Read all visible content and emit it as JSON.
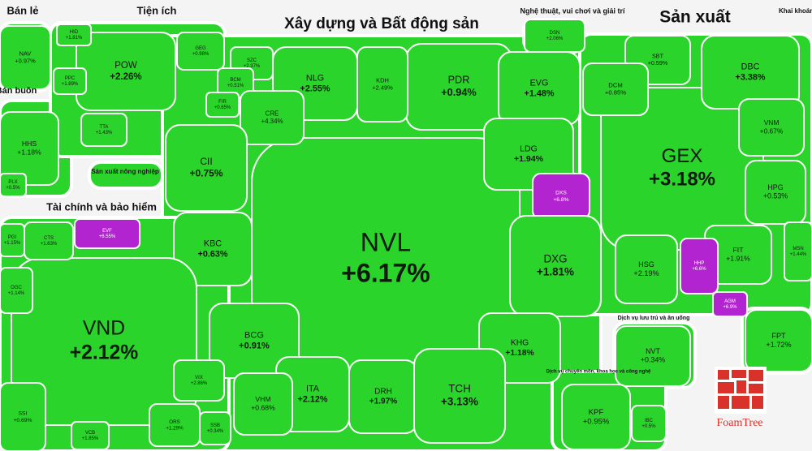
{
  "chart_data": {
    "type": "treemap",
    "logo": "FoamTree",
    "groups": [
      {
        "name": "Bán lẻ",
        "items": [
          {
            "name": "NAV",
            "value": 0.97,
            "value_label": "+0.97%",
            "color": "#2bd42b"
          }
        ]
      },
      {
        "name": "Bán buôn",
        "items": [
          {
            "name": "HHS",
            "value": 1.18,
            "value_label": "+1.18%",
            "color": "#2bd42b"
          },
          {
            "name": "PLX",
            "value": 0.5,
            "value_label": "+0.5%",
            "color": "#2bd42b"
          }
        ]
      },
      {
        "name": "Tiện ích",
        "items": [
          {
            "name": "POW",
            "value": 2.26,
            "value_label": "+2.26%",
            "color": "#2bd42b"
          },
          {
            "name": "GEG",
            "value": 0.98,
            "value_label": "+0.98%",
            "color": "#2bd42b"
          },
          {
            "name": "HID",
            "value": 1.81,
            "value_label": "+1.81%",
            "color": "#2bd42b"
          },
          {
            "name": "PPC",
            "value": 1.89,
            "value_label": "+1.89%",
            "color": "#2bd42b"
          },
          {
            "name": "TTA",
            "value": 1.43,
            "value_label": "+1.43%",
            "color": "#2bd42b"
          }
        ]
      },
      {
        "name": "Sản xuất nông nghiệp",
        "items": []
      },
      {
        "name": "Xây dựng và Bất động sản",
        "items": [
          {
            "name": "NVL",
            "value": 6.17,
            "value_label": "+6.17%",
            "color": "#2bd42b"
          },
          {
            "name": "PDR",
            "value": 0.94,
            "value_label": "+0.94%",
            "color": "#2bd42b"
          },
          {
            "name": "NLG",
            "value": 2.55,
            "value_label": "+2.55%",
            "color": "#2bd42b"
          },
          {
            "name": "KDH",
            "value": 2.49,
            "value_label": "+2.49%",
            "color": "#2bd42b"
          },
          {
            "name": "SZC",
            "value": 2.37,
            "value_label": "+2.37%",
            "color": "#2bd42b"
          },
          {
            "name": "BCM",
            "value": 0.51,
            "value_label": "+0.51%",
            "color": "#2bd42b"
          },
          {
            "name": "FIR",
            "value": 0.65,
            "value_label": "+0.65%",
            "color": "#2bd42b"
          },
          {
            "name": "CRE",
            "value": 4.34,
            "value_label": "+4.34%",
            "color": "#2bd42b"
          },
          {
            "name": "CII",
            "value": 0.75,
            "value_label": "+0.75%",
            "color": "#2bd42b"
          },
          {
            "name": "EVG",
            "value": 1.48,
            "value_label": "+1.48%",
            "color": "#2bd42b"
          },
          {
            "name": "LDG",
            "value": 1.94,
            "value_label": "+1.94%",
            "color": "#2bd42b"
          },
          {
            "name": "DXS",
            "value": 6.8,
            "value_label": "+6.8%",
            "color": "#b224cf"
          },
          {
            "name": "KBC",
            "value": 0.63,
            "value_label": "+0.63%",
            "color": "#2bd42b"
          },
          {
            "name": "DXG",
            "value": 1.81,
            "value_label": "+1.81%",
            "color": "#2bd42b"
          },
          {
            "name": "BCG",
            "value": 0.91,
            "value_label": "+0.91%",
            "color": "#2bd42b"
          },
          {
            "name": "KHG",
            "value": 1.18,
            "value_label": "+1.18%",
            "color": "#2bd42b"
          },
          {
            "name": "ITA",
            "value": 2.12,
            "value_label": "+2.12%",
            "color": "#2bd42b"
          },
          {
            "name": "DRH",
            "value": 1.97,
            "value_label": "+1.97%",
            "color": "#2bd42b"
          },
          {
            "name": "TCH",
            "value": 3.13,
            "value_label": "+3.13%",
            "color": "#2bd42b"
          },
          {
            "name": "VHM",
            "value": 0.68,
            "value_label": "+0.68%",
            "color": "#2bd42b"
          }
        ]
      },
      {
        "name": "Nghệ thuật, vui chơi và giải trí",
        "items": [
          {
            "name": "DSN",
            "value": 2.06,
            "value_label": "+2.06%",
            "color": "#2bd42b"
          }
        ]
      },
      {
        "name": "Sản xuất",
        "items": [
          {
            "name": "GEX",
            "value": 3.18,
            "value_label": "+3.18%",
            "color": "#2bd42b"
          },
          {
            "name": "DBC",
            "value": 3.38,
            "value_label": "+3.38%",
            "color": "#2bd42b"
          },
          {
            "name": "SBT",
            "value": 0.59,
            "value_label": "+0.59%",
            "color": "#2bd42b"
          },
          {
            "name": "DCM",
            "value": 0.85,
            "value_label": "+0.85%",
            "color": "#2bd42b"
          },
          {
            "name": "VNM",
            "value": 0.67,
            "value_label": "+0.67%",
            "color": "#2bd42b"
          },
          {
            "name": "HPG",
            "value": 0.53,
            "value_label": "+0.53%",
            "color": "#2bd42b"
          },
          {
            "name": "FIT",
            "value": 1.91,
            "value_label": "+1.91%",
            "color": "#2bd42b"
          },
          {
            "name": "HHP",
            "value": 6.6,
            "value_label": "+6.6%",
            "color": "#b224cf"
          },
          {
            "name": "AGM",
            "value": 6.9,
            "value_label": "+6.9%",
            "color": "#b224cf"
          },
          {
            "name": "HSG",
            "value": 2.19,
            "value_label": "+2.19%",
            "color": "#2bd42b"
          },
          {
            "name": "MSN",
            "value": 1.44,
            "value_label": "+1.44%",
            "color": "#2bd42b"
          }
        ]
      },
      {
        "name": "Khai khoáng",
        "items": []
      },
      {
        "name": "Tài chính và bảo hiểm",
        "items": [
          {
            "name": "VND",
            "value": 2.12,
            "value_label": "+2.12%",
            "color": "#2bd42b"
          },
          {
            "name": "EVF",
            "value": 6.55,
            "value_label": "+6.55%",
            "color": "#b224cf"
          },
          {
            "name": "CTS",
            "value": 1.63,
            "value_label": "+1.63%",
            "color": "#2bd42b"
          },
          {
            "name": "PGI",
            "value": 1.15,
            "value_label": "+1.15%",
            "color": "#2bd42b"
          },
          {
            "name": "OGC",
            "value": 1.14,
            "value_label": "+1.14%",
            "color": "#2bd42b"
          },
          {
            "name": "SSI",
            "value": 0.69,
            "value_label": "+0.69%",
            "color": "#2bd42b"
          },
          {
            "name": "VIX",
            "value": 2.86,
            "value_label": "+2.86%",
            "color": "#2bd42b"
          },
          {
            "name": "ORS",
            "value": 1.29,
            "value_label": "+1.29%",
            "color": "#2bd42b"
          },
          {
            "name": "SSB",
            "value": 0.34,
            "value_label": "+0.34%",
            "color": "#2bd42b"
          },
          {
            "name": "VCB",
            "value": 1.85,
            "value_label": "+1.85%",
            "color": "#2bd42b"
          }
        ]
      },
      {
        "name": "Dịch vụ lưu trú và ăn uống",
        "items": [
          {
            "name": "NVT",
            "value": 0.34,
            "value_label": "+0.34%",
            "color": "#2bd42b"
          }
        ]
      },
      {
        "name": "Dịch vụ chuyên môn, khoa học và công nghệ",
        "items": [
          {
            "name": "KPF",
            "value": 0.95,
            "value_label": "+0.95%",
            "color": "#2bd42b"
          },
          {
            "name": "IBC",
            "value": 0.5,
            "value_label": "+0.5%",
            "color": "#2bd42b"
          }
        ]
      },
      {
        "items": [
          {
            "name": "FPT",
            "value": 1.72,
            "value_label": "+1.72%",
            "color": "#2bd42b"
          }
        ]
      }
    ]
  }
}
